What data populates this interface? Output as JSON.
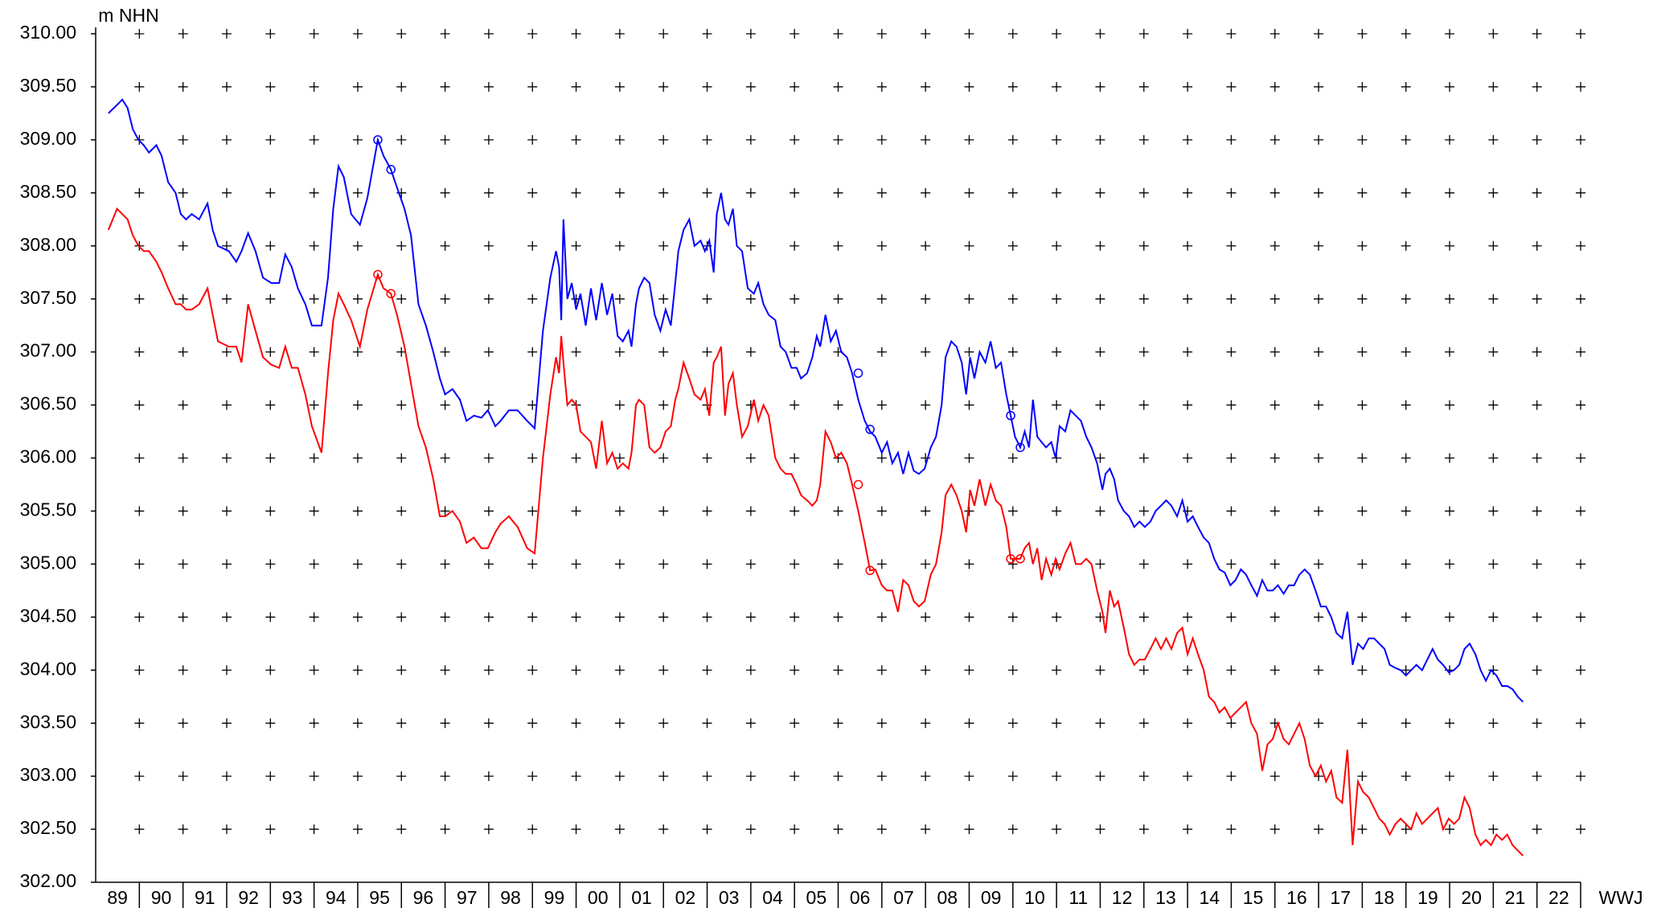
{
  "chart_data": {
    "type": "line",
    "y_label": "m NHN",
    "x_label": "WWJ",
    "categories": [
      "89",
      "90",
      "91",
      "92",
      "93",
      "94",
      "95",
      "96",
      "97",
      "98",
      "99",
      "00",
      "01",
      "02",
      "03",
      "04",
      "05",
      "06",
      "07",
      "08",
      "09",
      "10",
      "11",
      "12",
      "13",
      "14",
      "15",
      "16",
      "17",
      "18",
      "19",
      "20",
      "21",
      "22"
    ],
    "xlim": [
      0,
      34
    ],
    "ylim": [
      302,
      310
    ],
    "yticks": [
      {
        "value": 302,
        "label": "302.00"
      },
      {
        "value": 302.5,
        "label": "302.50"
      },
      {
        "value": 303,
        "label": "303.00"
      },
      {
        "value": 303.5,
        "label": "303.50"
      },
      {
        "value": 304,
        "label": "304.00"
      },
      {
        "value": 304.5,
        "label": "304.50"
      },
      {
        "value": 305,
        "label": "305.00"
      },
      {
        "value": 305.5,
        "label": "305.50"
      },
      {
        "value": 306,
        "label": "306.00"
      },
      {
        "value": 306.5,
        "label": "306.50"
      },
      {
        "value": 307,
        "label": "307.00"
      },
      {
        "value": 307.5,
        "label": "307.50"
      },
      {
        "value": 308,
        "label": "308.00"
      },
      {
        "value": 308.5,
        "label": "308.50"
      },
      {
        "value": 309,
        "label": "309.00"
      },
      {
        "value": 309.5,
        "label": "309.50"
      },
      {
        "value": 310,
        "label": "310.00"
      }
    ],
    "grid": "plus",
    "x": [
      0.29,
      0.49,
      0.61,
      0.73,
      0.85,
      0.98,
      1.1,
      1.22,
      1.39,
      1.51,
      1.66,
      1.83,
      1.95,
      2.07,
      2.2,
      2.37,
      2.56,
      2.68,
      2.8,
      3.05,
      3.22,
      3.34,
      3.49,
      3.66,
      3.83,
      4.02,
      4.2,
      4.34,
      4.49,
      4.63,
      4.8,
      4.95,
      5.17,
      5.32,
      5.44,
      5.56,
      5.68,
      5.85,
      6.05,
      6.22,
      6.46,
      6.59,
      6.76,
      6.9,
      7.07,
      7.22,
      7.39,
      7.56,
      7.73,
      7.88,
      8.0,
      8.17,
      8.34,
      8.49,
      8.66,
      8.83,
      8.98,
      9.15,
      9.27,
      9.46,
      9.66,
      9.88,
      10.05,
      10.24,
      10.41,
      10.54,
      10.61,
      10.66,
      10.71,
      10.8,
      10.9,
      11.0,
      11.1,
      11.22,
      11.34,
      11.46,
      11.59,
      11.71,
      11.83,
      11.95,
      12.07,
      12.2,
      12.27,
      12.37,
      12.44,
      12.56,
      12.68,
      12.8,
      12.93,
      13.05,
      13.17,
      13.27,
      13.34,
      13.46,
      13.59,
      13.71,
      13.85,
      13.95,
      14.05,
      14.15,
      14.22,
      14.32,
      14.41,
      14.49,
      14.59,
      14.68,
      14.8,
      14.93,
      15.07,
      15.17,
      15.29,
      15.41,
      15.56,
      15.68,
      15.8,
      15.93,
      16.05,
      16.15,
      16.29,
      16.41,
      16.51,
      16.59,
      16.71,
      16.83,
      16.95,
      17.07,
      17.2,
      17.32,
      17.46,
      17.61,
      17.73,
      17.85,
      18.0,
      18.12,
      18.24,
      18.37,
      18.49,
      18.61,
      18.73,
      18.85,
      18.98,
      19.12,
      19.24,
      19.37,
      19.46,
      19.59,
      19.71,
      19.83,
      19.93,
      20.02,
      20.12,
      20.24,
      20.37,
      20.49,
      20.61,
      20.73,
      20.85,
      20.95,
      21.05,
      21.17,
      21.27,
      21.37,
      21.46,
      21.56,
      21.66,
      21.76,
      21.88,
      21.98,
      22.07,
      22.2,
      22.32,
      22.44,
      22.56,
      22.68,
      22.8,
      22.93,
      23.05,
      23.12,
      23.22,
      23.32,
      23.41,
      23.54,
      23.66,
      23.78,
      23.9,
      24.02,
      24.15,
      24.27,
      24.39,
      24.51,
      24.63,
      24.76,
      24.88,
      25.0,
      25.12,
      25.24,
      25.37,
      25.49,
      25.61,
      25.73,
      25.85,
      25.98,
      26.1,
      26.22,
      26.34,
      26.46,
      26.59,
      26.71,
      26.83,
      26.95,
      27.07,
      27.2,
      27.32,
      27.44,
      27.56,
      27.68,
      27.8,
      27.93,
      28.05,
      28.17,
      28.29,
      28.41,
      28.54,
      28.66,
      28.78,
      28.9,
      29.02,
      29.15,
      29.27,
      29.39,
      29.51,
      29.63,
      29.76,
      29.88,
      30.0,
      30.12,
      30.24,
      30.37,
      30.49,
      30.61,
      30.73,
      30.85,
      30.98,
      31.1,
      31.22,
      31.34,
      31.46,
      31.59,
      31.71,
      31.83,
      31.95,
      32.07,
      32.2,
      32.32,
      32.44,
      32.56,
      32.68
    ],
    "marker_x": [
      6.46,
      6.76,
      17.46,
      17.73,
      20.95,
      21.17
    ],
    "series": [
      {
        "color": "#0000ff",
        "values": [
          309.25,
          309.33,
          309.38,
          309.3,
          309.1,
          309.0,
          308.95,
          308.88,
          308.95,
          308.85,
          308.6,
          308.5,
          308.3,
          308.25,
          308.3,
          308.25,
          308.4,
          308.15,
          308.0,
          307.95,
          307.85,
          307.95,
          308.12,
          307.95,
          307.7,
          307.65,
          307.65,
          307.92,
          307.8,
          307.6,
          307.45,
          307.25,
          307.25,
          307.7,
          308.35,
          308.75,
          308.65,
          308.3,
          308.2,
          308.45,
          309.0,
          308.85,
          308.72,
          308.55,
          308.35,
          308.1,
          307.45,
          307.25,
          307.0,
          306.75,
          306.6,
          306.65,
          306.55,
          306.35,
          306.4,
          306.38,
          306.45,
          306.3,
          306.35,
          306.45,
          306.45,
          306.35,
          306.28,
          307.2,
          307.7,
          307.95,
          307.8,
          307.3,
          308.25,
          307.5,
          307.65,
          307.4,
          307.55,
          307.25,
          307.6,
          307.3,
          307.65,
          307.35,
          307.55,
          307.15,
          307.1,
          307.2,
          307.05,
          307.45,
          307.6,
          307.7,
          307.65,
          307.35,
          307.2,
          307.4,
          307.25,
          307.65,
          307.95,
          308.15,
          308.25,
          308.0,
          308.05,
          307.95,
          308.05,
          307.75,
          308.3,
          308.5,
          308.25,
          308.2,
          308.35,
          308.0,
          307.95,
          307.6,
          307.55,
          307.65,
          307.45,
          307.35,
          307.3,
          307.05,
          307.0,
          306.85,
          306.85,
          306.75,
          306.8,
          306.95,
          307.15,
          307.05,
          307.35,
          307.1,
          307.2,
          307.0,
          306.95,
          306.8,
          306.55,
          306.35,
          306.25,
          306.2,
          306.05,
          306.15,
          305.95,
          306.05,
          305.85,
          306.05,
          305.88,
          305.85,
          305.9,
          306.1,
          306.2,
          306.5,
          306.95,
          307.1,
          307.05,
          306.9,
          306.6,
          306.95,
          306.75,
          307.0,
          306.9,
          307.1,
          306.85,
          306.9,
          306.6,
          306.4,
          306.2,
          306.1,
          306.25,
          306.1,
          306.55,
          306.2,
          306.15,
          306.1,
          306.15,
          306.0,
          306.3,
          306.25,
          306.45,
          306.4,
          306.35,
          306.2,
          306.1,
          305.95,
          305.7,
          305.85,
          305.9,
          305.8,
          305.6,
          305.5,
          305.45,
          305.35,
          305.4,
          305.35,
          305.4,
          305.5,
          305.55,
          305.6,
          305.55,
          305.45,
          305.6,
          305.4,
          305.45,
          305.35,
          305.25,
          305.2,
          305.05,
          304.95,
          304.92,
          304.8,
          304.85,
          304.95,
          304.9,
          304.8,
          304.7,
          304.85,
          304.75,
          304.75,
          304.8,
          304.72,
          304.8,
          304.8,
          304.9,
          304.95,
          304.9,
          304.75,
          304.6,
          304.6,
          304.5,
          304.35,
          304.3,
          304.55,
          304.05,
          304.25,
          304.2,
          304.3,
          304.3,
          304.25,
          304.2,
          304.05,
          304.02,
          304.0,
          303.95,
          304.0,
          304.05,
          304.0,
          304.1,
          304.2,
          304.1,
          304.05,
          303.98,
          304.0,
          304.05,
          304.2,
          304.25,
          304.15,
          304.0,
          303.9,
          304.0,
          303.95,
          303.85,
          303.85,
          303.82,
          303.75,
          303.7
        ],
        "markers": [
          309.0,
          308.72,
          306.8,
          306.27,
          306.4,
          306.1
        ]
      },
      {
        "color": "#ff0000",
        "values": [
          308.15,
          308.35,
          308.3,
          308.25,
          308.1,
          308.0,
          307.95,
          307.95,
          307.85,
          307.75,
          307.6,
          307.45,
          307.45,
          307.4,
          307.4,
          307.45,
          307.6,
          307.35,
          307.1,
          307.05,
          307.05,
          306.9,
          307.45,
          307.2,
          306.95,
          306.88,
          306.85,
          307.05,
          306.85,
          306.85,
          306.6,
          306.3,
          306.05,
          306.8,
          307.3,
          307.55,
          307.45,
          307.3,
          307.05,
          307.4,
          307.73,
          307.6,
          307.55,
          307.35,
          307.05,
          306.7,
          306.3,
          306.1,
          305.8,
          305.45,
          305.45,
          305.5,
          305.4,
          305.2,
          305.25,
          305.15,
          305.15,
          305.3,
          305.38,
          305.45,
          305.35,
          305.15,
          305.1,
          306.0,
          306.6,
          306.95,
          306.8,
          307.15,
          306.9,
          306.5,
          306.55,
          306.5,
          306.25,
          306.2,
          306.15,
          305.9,
          306.35,
          305.95,
          306.05,
          305.9,
          305.95,
          305.9,
          306.05,
          306.5,
          306.55,
          306.5,
          306.1,
          306.05,
          306.1,
          306.25,
          306.3,
          306.55,
          306.65,
          306.9,
          306.75,
          306.6,
          306.55,
          306.65,
          306.4,
          306.9,
          306.95,
          307.05,
          306.4,
          306.7,
          306.8,
          306.5,
          306.2,
          306.3,
          306.55,
          306.35,
          306.5,
          306.4,
          306.0,
          305.9,
          305.85,
          305.85,
          305.75,
          305.65,
          305.6,
          305.55,
          305.6,
          305.75,
          306.25,
          306.15,
          306.0,
          306.05,
          305.95,
          305.75,
          305.5,
          305.2,
          304.94,
          304.95,
          304.8,
          304.75,
          304.75,
          304.55,
          304.85,
          304.8,
          304.65,
          304.6,
          304.65,
          304.9,
          305.0,
          305.3,
          305.65,
          305.75,
          305.65,
          305.5,
          305.3,
          305.7,
          305.55,
          305.8,
          305.55,
          305.75,
          305.6,
          305.55,
          305.35,
          305.05,
          305.05,
          305.05,
          305.15,
          305.2,
          305.0,
          305.15,
          304.85,
          305.05,
          304.9,
          305.05,
          304.95,
          305.1,
          305.2,
          305.0,
          305.0,
          305.05,
          305.0,
          304.75,
          304.55,
          304.35,
          304.75,
          304.6,
          304.65,
          304.4,
          304.15,
          304.05,
          304.1,
          304.1,
          304.2,
          304.3,
          304.2,
          304.3,
          304.2,
          304.35,
          304.4,
          304.15,
          304.3,
          304.15,
          304.0,
          303.75,
          303.7,
          303.6,
          303.65,
          303.55,
          303.6,
          303.65,
          303.7,
          303.5,
          303.4,
          303.05,
          303.3,
          303.35,
          303.5,
          303.35,
          303.3,
          303.4,
          303.5,
          303.35,
          303.1,
          303.0,
          303.1,
          302.95,
          303.05,
          302.8,
          302.75,
          303.25,
          302.35,
          302.95,
          302.85,
          302.8,
          302.7,
          302.6,
          302.55,
          302.45,
          302.55,
          302.6,
          302.55,
          302.5,
          302.65,
          302.55,
          302.6,
          302.65,
          302.7,
          302.5,
          302.6,
          302.55,
          302.6,
          302.8,
          302.7,
          302.45,
          302.35,
          302.4,
          302.35,
          302.45,
          302.4,
          302.45,
          302.35,
          302.3,
          302.25
        ],
        "markers": [
          307.73,
          307.55,
          305.75,
          304.94,
          305.05,
          305.05
        ]
      }
    ]
  }
}
